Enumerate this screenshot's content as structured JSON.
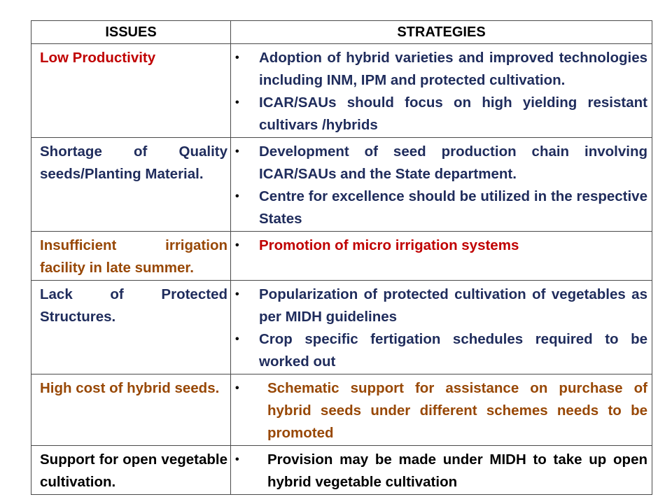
{
  "colors": {
    "red": "#c00000",
    "navy": "#1f2c5c",
    "brown": "#984806",
    "black": "#000000",
    "border": "#4a4a4a"
  },
  "table": {
    "headers": [
      "ISSUES",
      "STRATEGIES"
    ],
    "rows": [
      {
        "issue": "Low Productivity",
        "issue_color": "red",
        "strategy_color": "navy",
        "strategies": [
          "Adoption of hybrid varieties and improved technologies including INM, IPM and protected cultivation.",
          "ICAR/SAUs should focus on high yielding resistant cultivars /hybrids"
        ]
      },
      {
        "issue": "Shortage of Quality seeds/Planting Material.",
        "issue_color": "navy",
        "strategy_color": "navy",
        "strategies": [
          "Development of seed production chain involving ICAR/SAUs and the State department.",
          "Centre for excellence should be utilized in the respective States"
        ]
      },
      {
        "issue": "Insufficient irrigation facility in late summer.",
        "issue_color": "brown",
        "strategy_color": "red",
        "strategies": [
          "Promotion of micro  irrigation systems"
        ]
      },
      {
        "issue": "Lack of Protected Structures.",
        "issue_color": "navy",
        "strategy_color": "navy",
        "strategies": [
          "Popularization of protected cultivation of vegetables as per  MIDH guidelines",
          "Crop specific fertigation schedules required to be worked out"
        ]
      },
      {
        "issue": "High cost of hybrid seeds.",
        "issue_color": "brown",
        "strategy_color": "brown",
        "strategies": [
          "Schematic support for assistance on purchase of hybrid seeds under different schemes needs to be promoted"
        ]
      },
      {
        "issue": "Support for open vegetable cultivation.",
        "issue_color": "black",
        "strategy_color": "black",
        "strategies": [
          "Provision may be made under MIDH to take up open hybrid vegetable cultivation"
        ]
      }
    ]
  }
}
